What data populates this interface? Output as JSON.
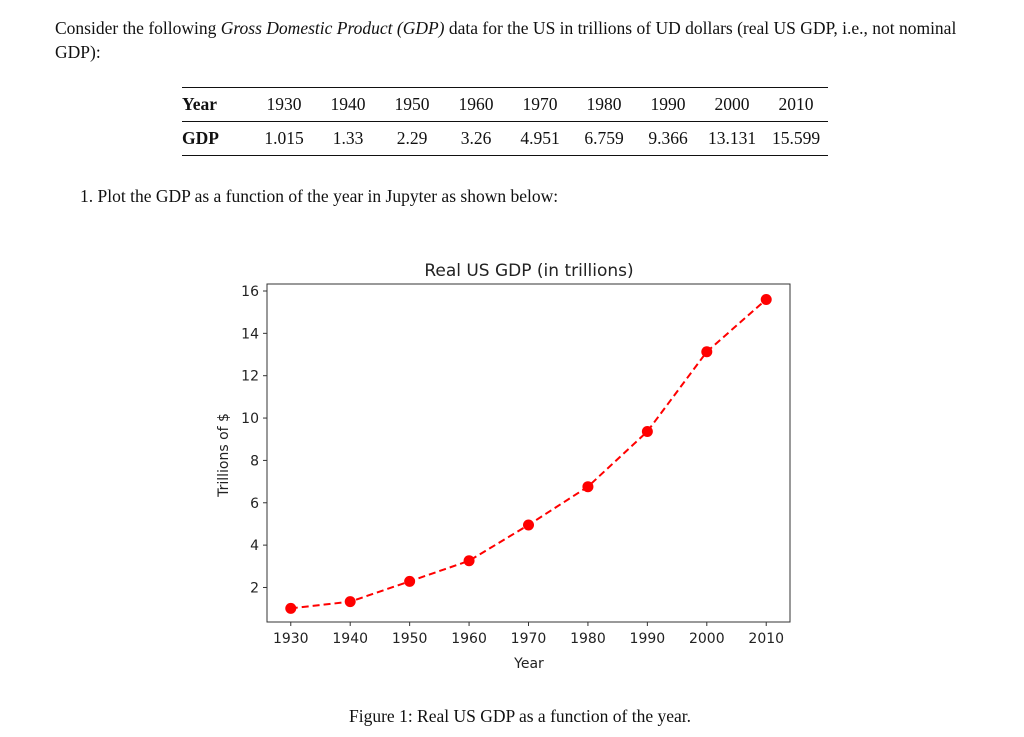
{
  "intro": {
    "before": "Consider the following ",
    "emph": "Gross Domestic Product (GDP)",
    "after": " data for the US in trillions of UD dollars (real US GDP, i.e., not nominal GDP):"
  },
  "table": {
    "row_headers": [
      "Year",
      "GDP"
    ],
    "years": [
      "1930",
      "1940",
      "1950",
      "1960",
      "1970",
      "1980",
      "1990",
      "2000",
      "2010"
    ],
    "gdp": [
      "1.015",
      "1.33",
      "2.29",
      "3.26",
      "4.951",
      "6.759",
      "9.366",
      "13.131",
      "15.599"
    ]
  },
  "task": "1. Plot the GDP as a function of the year in Jupyter as shown below:",
  "caption": "Figure 1: Real US GDP as a function of the year.",
  "chart_data": {
    "type": "line",
    "title": "Real US GDP (in trillions)",
    "xlabel": "Year",
    "ylabel": "Trillions of $",
    "x": [
      1930,
      1940,
      1950,
      1960,
      1970,
      1980,
      1990,
      2000,
      2010
    ],
    "values": [
      1.015,
      1.33,
      2.29,
      3.26,
      4.951,
      6.759,
      9.366,
      13.131,
      15.599
    ],
    "xticks": [
      "1930",
      "1940",
      "1950",
      "1960",
      "1970",
      "1980",
      "1990",
      "2000",
      "2010"
    ],
    "yticks": [
      "2",
      "4",
      "6",
      "8",
      "10",
      "12",
      "14",
      "16"
    ],
    "xlim": [
      1926,
      2014
    ],
    "ylim": [
      0.37,
      16.33
    ],
    "line_style": "dashed",
    "marker": "circle",
    "color": "#ff0000",
    "grid": false
  }
}
